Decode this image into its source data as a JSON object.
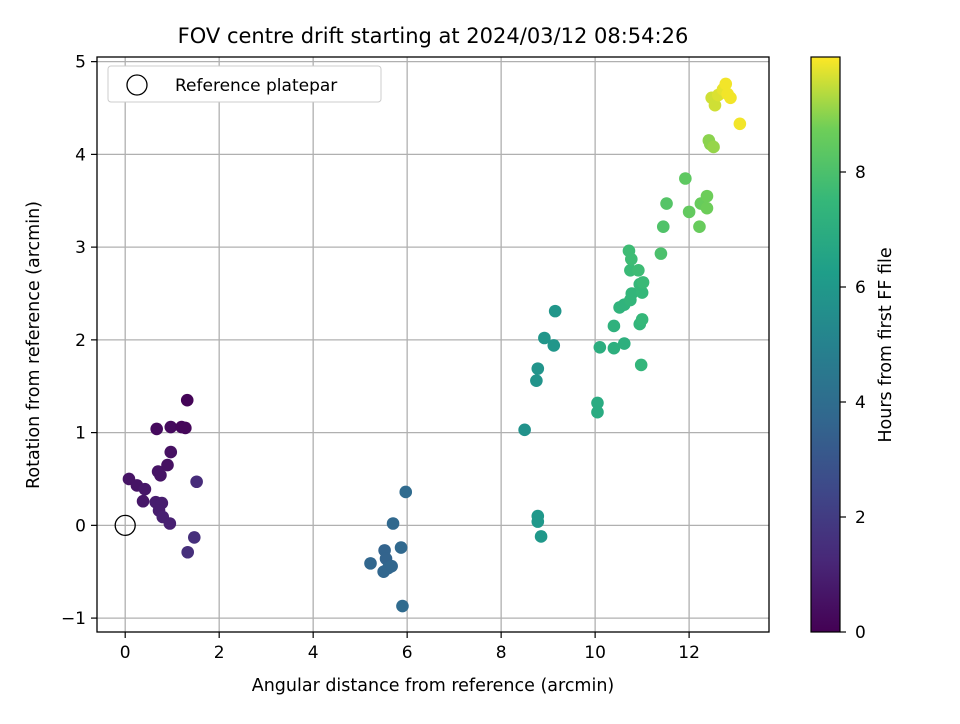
{
  "chart_data": {
    "type": "scatter",
    "title": "FOV centre drift starting at 2024/03/12 08:54:26",
    "xlabel": "Angular distance from reference (arcmin)",
    "ylabel": "Rotation from reference (arcmin)",
    "xlim": [
      -0.6,
      13.7
    ],
    "ylim": [
      -1.15,
      5.05
    ],
    "xticks": [
      0,
      2,
      4,
      6,
      8,
      10,
      12
    ],
    "yticks": [
      -1,
      0,
      1,
      2,
      3,
      4,
      5
    ],
    "grid": true,
    "legend": {
      "placement": "top-left",
      "entries": [
        "Reference platepar"
      ]
    },
    "reference_point": {
      "x": 0,
      "y": 0
    },
    "colorbar": {
      "label": "Hours from first FF file",
      "range": [
        0,
        10
      ],
      "ticks": [
        0,
        2,
        4,
        6,
        8
      ],
      "colormap": "viridis"
    },
    "points": [
      {
        "x": 0.08,
        "y": 0.5,
        "hours": 0.6
      },
      {
        "x": 0.25,
        "y": 0.43,
        "hours": 0.6
      },
      {
        "x": 0.42,
        "y": 0.39,
        "hours": 0.7
      },
      {
        "x": 0.38,
        "y": 0.26,
        "hours": 0.7
      },
      {
        "x": 0.65,
        "y": 0.25,
        "hours": 0.9
      },
      {
        "x": 0.78,
        "y": 0.24,
        "hours": 0.9
      },
      {
        "x": 0.72,
        "y": 0.16,
        "hours": 0.9
      },
      {
        "x": 0.8,
        "y": 0.09,
        "hours": 1.0
      },
      {
        "x": 0.95,
        "y": 0.02,
        "hours": 1.0
      },
      {
        "x": 0.7,
        "y": 0.58,
        "hours": 0.6
      },
      {
        "x": 0.75,
        "y": 0.54,
        "hours": 0.6
      },
      {
        "x": 0.9,
        "y": 0.65,
        "hours": 0.5
      },
      {
        "x": 0.97,
        "y": 0.79,
        "hours": 0.5
      },
      {
        "x": 0.67,
        "y": 1.04,
        "hours": 0.3
      },
      {
        "x": 0.97,
        "y": 1.06,
        "hours": 0.3
      },
      {
        "x": 1.2,
        "y": 1.06,
        "hours": 0.2
      },
      {
        "x": 1.28,
        "y": 1.05,
        "hours": 0.2
      },
      {
        "x": 1.32,
        "y": 1.35,
        "hours": 0.1
      },
      {
        "x": 1.52,
        "y": 0.47,
        "hours": 1.4
      },
      {
        "x": 1.47,
        "y": -0.13,
        "hours": 1.5
      },
      {
        "x": 1.33,
        "y": -0.29,
        "hours": 1.5
      },
      {
        "x": 5.22,
        "y": -0.41,
        "hours": 3.7
      },
      {
        "x": 5.52,
        "y": -0.27,
        "hours": 3.6
      },
      {
        "x": 5.55,
        "y": -0.36,
        "hours": 3.6
      },
      {
        "x": 5.5,
        "y": -0.5,
        "hours": 3.7
      },
      {
        "x": 5.6,
        "y": -0.46,
        "hours": 3.7
      },
      {
        "x": 5.67,
        "y": -0.44,
        "hours": 3.7
      },
      {
        "x": 5.7,
        "y": 0.02,
        "hours": 3.8
      },
      {
        "x": 5.87,
        "y": -0.24,
        "hours": 3.8
      },
      {
        "x": 5.97,
        "y": 0.36,
        "hours": 3.9
      },
      {
        "x": 5.9,
        "y": -0.87,
        "hours": 3.9
      },
      {
        "x": 8.5,
        "y": 1.03,
        "hours": 5.7
      },
      {
        "x": 8.78,
        "y": 1.69,
        "hours": 5.8
      },
      {
        "x": 8.75,
        "y": 1.56,
        "hours": 5.8
      },
      {
        "x": 8.92,
        "y": 2.02,
        "hours": 5.9
      },
      {
        "x": 9.12,
        "y": 1.94,
        "hours": 5.9
      },
      {
        "x": 9.15,
        "y": 2.31,
        "hours": 5.9
      },
      {
        "x": 8.78,
        "y": 0.1,
        "hours": 6.0
      },
      {
        "x": 8.78,
        "y": 0.04,
        "hours": 6.0
      },
      {
        "x": 8.85,
        "y": -0.12,
        "hours": 6.0
      },
      {
        "x": 10.05,
        "y": 1.32,
        "hours": 6.9
      },
      {
        "x": 10.05,
        "y": 1.22,
        "hours": 6.9
      },
      {
        "x": 10.1,
        "y": 1.92,
        "hours": 7.0
      },
      {
        "x": 10.4,
        "y": 1.91,
        "hours": 7.1
      },
      {
        "x": 10.62,
        "y": 1.96,
        "hours": 7.1
      },
      {
        "x": 10.4,
        "y": 2.15,
        "hours": 7.2
      },
      {
        "x": 10.52,
        "y": 2.35,
        "hours": 7.3
      },
      {
        "x": 10.62,
        "y": 2.38,
        "hours": 7.3
      },
      {
        "x": 10.75,
        "y": 2.43,
        "hours": 7.4
      },
      {
        "x": 10.78,
        "y": 2.5,
        "hours": 7.4
      },
      {
        "x": 10.95,
        "y": 2.17,
        "hours": 7.4
      },
      {
        "x": 11.0,
        "y": 2.22,
        "hours": 7.5
      },
      {
        "x": 10.98,
        "y": 1.73,
        "hours": 7.4
      },
      {
        "x": 11.0,
        "y": 2.51,
        "hours": 7.5
      },
      {
        "x": 10.95,
        "y": 2.6,
        "hours": 7.5
      },
      {
        "x": 11.02,
        "y": 2.62,
        "hours": 7.6
      },
      {
        "x": 10.75,
        "y": 2.75,
        "hours": 7.6
      },
      {
        "x": 10.92,
        "y": 2.75,
        "hours": 7.7
      },
      {
        "x": 10.77,
        "y": 2.87,
        "hours": 7.7
      },
      {
        "x": 10.72,
        "y": 2.96,
        "hours": 7.7
      },
      {
        "x": 11.4,
        "y": 2.93,
        "hours": 8.0
      },
      {
        "x": 11.45,
        "y": 3.22,
        "hours": 8.1
      },
      {
        "x": 11.52,
        "y": 3.47,
        "hours": 8.2
      },
      {
        "x": 11.92,
        "y": 3.74,
        "hours": 8.4
      },
      {
        "x": 12.0,
        "y": 3.38,
        "hours": 8.5
      },
      {
        "x": 12.22,
        "y": 3.22,
        "hours": 8.6
      },
      {
        "x": 12.25,
        "y": 3.47,
        "hours": 8.6
      },
      {
        "x": 12.38,
        "y": 3.55,
        "hours": 8.7
      },
      {
        "x": 12.38,
        "y": 3.42,
        "hours": 8.7
      },
      {
        "x": 12.42,
        "y": 4.15,
        "hours": 9.0
      },
      {
        "x": 12.45,
        "y": 4.11,
        "hours": 9.0
      },
      {
        "x": 12.52,
        "y": 4.08,
        "hours": 9.1
      },
      {
        "x": 12.48,
        "y": 4.61,
        "hours": 9.6
      },
      {
        "x": 12.55,
        "y": 4.53,
        "hours": 9.6
      },
      {
        "x": 12.62,
        "y": 4.64,
        "hours": 9.7
      },
      {
        "x": 12.72,
        "y": 4.7,
        "hours": 9.8
      },
      {
        "x": 12.78,
        "y": 4.76,
        "hours": 9.9
      },
      {
        "x": 12.82,
        "y": 4.65,
        "hours": 9.9
      },
      {
        "x": 12.88,
        "y": 4.61,
        "hours": 9.9
      },
      {
        "x": 13.08,
        "y": 4.33,
        "hours": 9.9
      }
    ]
  }
}
